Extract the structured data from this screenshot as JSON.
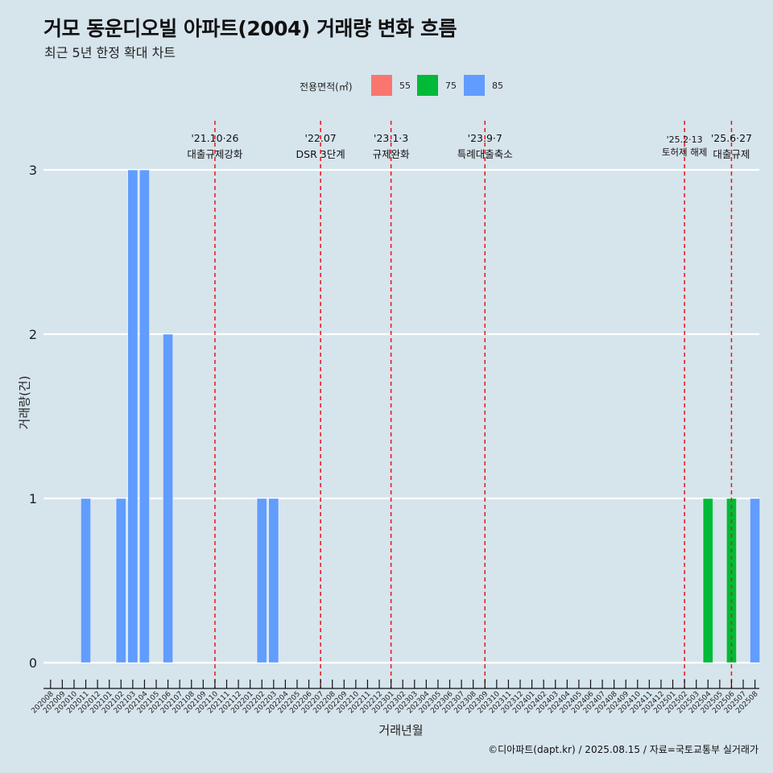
{
  "title": "거모 동운디오빌 아파트(2004) 거래량 변화 흐름",
  "subtitle": "최근 5년 한정 확대 차트",
  "legend": {
    "title": "전용면적(㎡)",
    "items": [
      {
        "label": "55",
        "color": "#f8766d"
      },
      {
        "label": "75",
        "color": "#00ba38"
      },
      {
        "label": "85",
        "color": "#619cff"
      }
    ]
  },
  "caption": "©디아파트(dapt.kr) / 2025.08.15 / 자료=국토교통부 실거래가",
  "chart_data": {
    "type": "bar",
    "title": "거모 동운디오빌 아파트(2004) 거래량 변화 흐름",
    "xlabel": "거래년월",
    "ylabel": "거래량(건)",
    "ylim": [
      0,
      3
    ],
    "yticks": [
      0,
      1,
      2,
      3
    ],
    "categories": [
      "202008",
      "202009",
      "202010",
      "202011",
      "202012",
      "202101",
      "202102",
      "202103",
      "202104",
      "202105",
      "202106",
      "202107",
      "202108",
      "202109",
      "202110",
      "202111",
      "202112",
      "202201",
      "202202",
      "202203",
      "202204",
      "202205",
      "202206",
      "202207",
      "202208",
      "202209",
      "202210",
      "202211",
      "202212",
      "202301",
      "202302",
      "202303",
      "202304",
      "202305",
      "202306",
      "202307",
      "202308",
      "202309",
      "202310",
      "202311",
      "202312",
      "202401",
      "202402",
      "202403",
      "202404",
      "202405",
      "202406",
      "202407",
      "202408",
      "202409",
      "202410",
      "202411",
      "202412",
      "202501",
      "202502",
      "202503",
      "202504",
      "202505",
      "202506",
      "202507",
      "202508"
    ],
    "bars": [
      {
        "x": "202011",
        "area": "85",
        "value": 1
      },
      {
        "x": "202102",
        "area": "85",
        "value": 1
      },
      {
        "x": "202103",
        "area": "85",
        "value": 3
      },
      {
        "x": "202104",
        "area": "85",
        "value": 3
      },
      {
        "x": "202106",
        "area": "85",
        "value": 2
      },
      {
        "x": "202202",
        "area": "85",
        "value": 1
      },
      {
        "x": "202203",
        "area": "85",
        "value": 1
      },
      {
        "x": "202504",
        "area": "75",
        "value": 1
      },
      {
        "x": "202506",
        "area": "75",
        "value": 1
      },
      {
        "x": "202508",
        "area": "85",
        "value": 1
      }
    ],
    "events": [
      {
        "date": "'21.10·26",
        "label": "대출규제강화",
        "x": "202110"
      },
      {
        "date": "'22.07",
        "label": "DSR 3단계",
        "x": "202207"
      },
      {
        "date": "'23.1·3",
        "label": "규제완화",
        "x": "202301"
      },
      {
        "date": "'23.9·7",
        "label": "특례대출축소",
        "x": "202309"
      },
      {
        "date": "'25.2·13",
        "label": "토허제 해제",
        "x": "202502"
      },
      {
        "date": "'25.6·27",
        "label": "대출규제",
        "x": "202506"
      }
    ]
  }
}
